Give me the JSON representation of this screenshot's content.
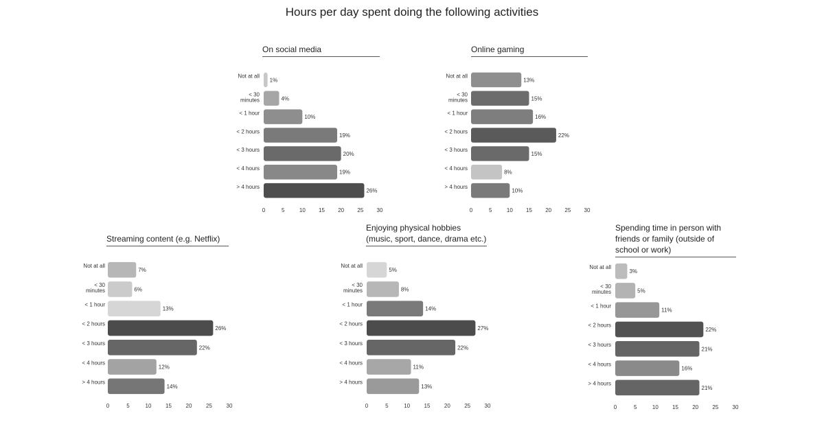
{
  "title": "Hours per day spent doing the following activities",
  "chart_data": [
    {
      "type": "bar",
      "orientation": "horizontal",
      "title_lines": [
        "On social media"
      ],
      "categories": [
        [
          "Not at all"
        ],
        [
          "< 30",
          "minutes"
        ],
        [
          "< 1 hour"
        ],
        [
          "< 2 hours"
        ],
        [
          "< 3 hours"
        ],
        [
          "< 4 hours"
        ],
        [
          "> 4 hours"
        ]
      ],
      "values": [
        1,
        4,
        10,
        19,
        20,
        19,
        26
      ],
      "value_labels": [
        "1%",
        "4%",
        "10%",
        "19%",
        "20%",
        "19%",
        "26%"
      ],
      "bar_colors": [
        "#c8c8c8",
        "#a6a6a6",
        "#8e8e8e",
        "#7a7a7a",
        "#6a6a6a",
        "#888888",
        "#4e4e4e"
      ],
      "xlim": [
        0,
        30
      ],
      "xticks": [
        "0",
        "5",
        "10",
        "15",
        "20",
        "25",
        "30"
      ],
      "grid": false
    },
    {
      "type": "bar",
      "orientation": "horizontal",
      "title_lines": [
        "Online gaming"
      ],
      "categories": [
        [
          "Not at all"
        ],
        [
          "< 30",
          "minutes"
        ],
        [
          "< 1 hour"
        ],
        [
          "< 2 hours"
        ],
        [
          "< 3 hours"
        ],
        [
          "< 4 hours"
        ],
        [
          "> 4 hours"
        ]
      ],
      "values": [
        13,
        15,
        16,
        22,
        15,
        8,
        10
      ],
      "value_labels": [
        "13%",
        "15%",
        "16%",
        "22%",
        "15%",
        "8%",
        "10%"
      ],
      "bar_colors": [
        "#8f8f8f",
        "#6c6c6c",
        "#7e7e7e",
        "#5a5a5a",
        "#6a6a6a",
        "#c4c4c4",
        "#7a7a7a"
      ],
      "xlim": [
        0,
        30
      ],
      "xticks": [
        "0",
        "5",
        "10",
        "15",
        "20",
        "25",
        "30"
      ],
      "grid": false
    },
    {
      "type": "bar",
      "orientation": "horizontal",
      "title_lines": [
        "Streaming content (e.g. Netflix)"
      ],
      "categories": [
        [
          "Not at all"
        ],
        [
          "< 30",
          "minutes"
        ],
        [
          "< 1 hour"
        ],
        [
          "< 2 hours"
        ],
        [
          "< 3 hours"
        ],
        [
          "< 4 hours"
        ],
        [
          "> 4 hours"
        ]
      ],
      "values": [
        7,
        6,
        13,
        26,
        22,
        12,
        14
      ],
      "value_labels": [
        "7%",
        "6%",
        "13%",
        "26%",
        "22%",
        "12%",
        "14%"
      ],
      "bar_colors": [
        "#b7b7b7",
        "#cbcbcb",
        "#d6d6d6",
        "#4c4c4c",
        "#666666",
        "#a3a3a3",
        "#767676"
      ],
      "xlim": [
        0,
        30
      ],
      "xticks": [
        "0",
        "5",
        "10",
        "15",
        "20",
        "25",
        "30"
      ],
      "grid": false
    },
    {
      "type": "bar",
      "orientation": "horizontal",
      "title_lines": [
        "Enjoying physical hobbies",
        "(music, sport, dance, drama etc.)"
      ],
      "categories": [
        [
          "Not at all"
        ],
        [
          "< 30",
          "minutes"
        ],
        [
          "< 1 hour"
        ],
        [
          "< 2 hours"
        ],
        [
          "< 3 hours"
        ],
        [
          "< 4 hours"
        ],
        [
          "> 4 hours"
        ]
      ],
      "values": [
        5,
        8,
        14,
        27,
        22,
        11,
        13
      ],
      "value_labels": [
        "5%",
        "8%",
        "14%",
        "27%",
        "22%",
        "11%",
        "13%"
      ],
      "bar_colors": [
        "#d6d6d6",
        "#b7b7b7",
        "#7a7a7a",
        "#4c4c4c",
        "#666666",
        "#a7a7a7",
        "#9a9a9a"
      ],
      "xlim": [
        0,
        30
      ],
      "xticks": [
        "0",
        "5",
        "10",
        "15",
        "20",
        "25",
        "30"
      ],
      "grid": false
    },
    {
      "type": "bar",
      "orientation": "horizontal",
      "title_lines": [
        "Spending time in person with",
        "friends or family (outside of",
        "school or work)"
      ],
      "categories": [
        [
          "Not at all"
        ],
        [
          "< 30",
          "minutes"
        ],
        [
          "< 1 hour"
        ],
        [
          "< 2 hours"
        ],
        [
          "< 3 hours"
        ],
        [
          "< 4 hours"
        ],
        [
          "> 4 hours"
        ]
      ],
      "values": [
        3,
        5,
        11,
        22,
        21,
        16,
        21
      ],
      "value_labels": [
        "3%",
        "5%",
        "11%",
        "22%",
        "21%",
        "16%",
        "21%"
      ],
      "bar_colors": [
        "#bcbcbc",
        "#b3b3b3",
        "#979797",
        "#525252",
        "#656565",
        "#8a8a8a",
        "#656565"
      ],
      "xlim": [
        0,
        30
      ],
      "xticks": [
        "0",
        "5",
        "10",
        "15",
        "20",
        "25",
        "30"
      ],
      "grid": false
    }
  ]
}
